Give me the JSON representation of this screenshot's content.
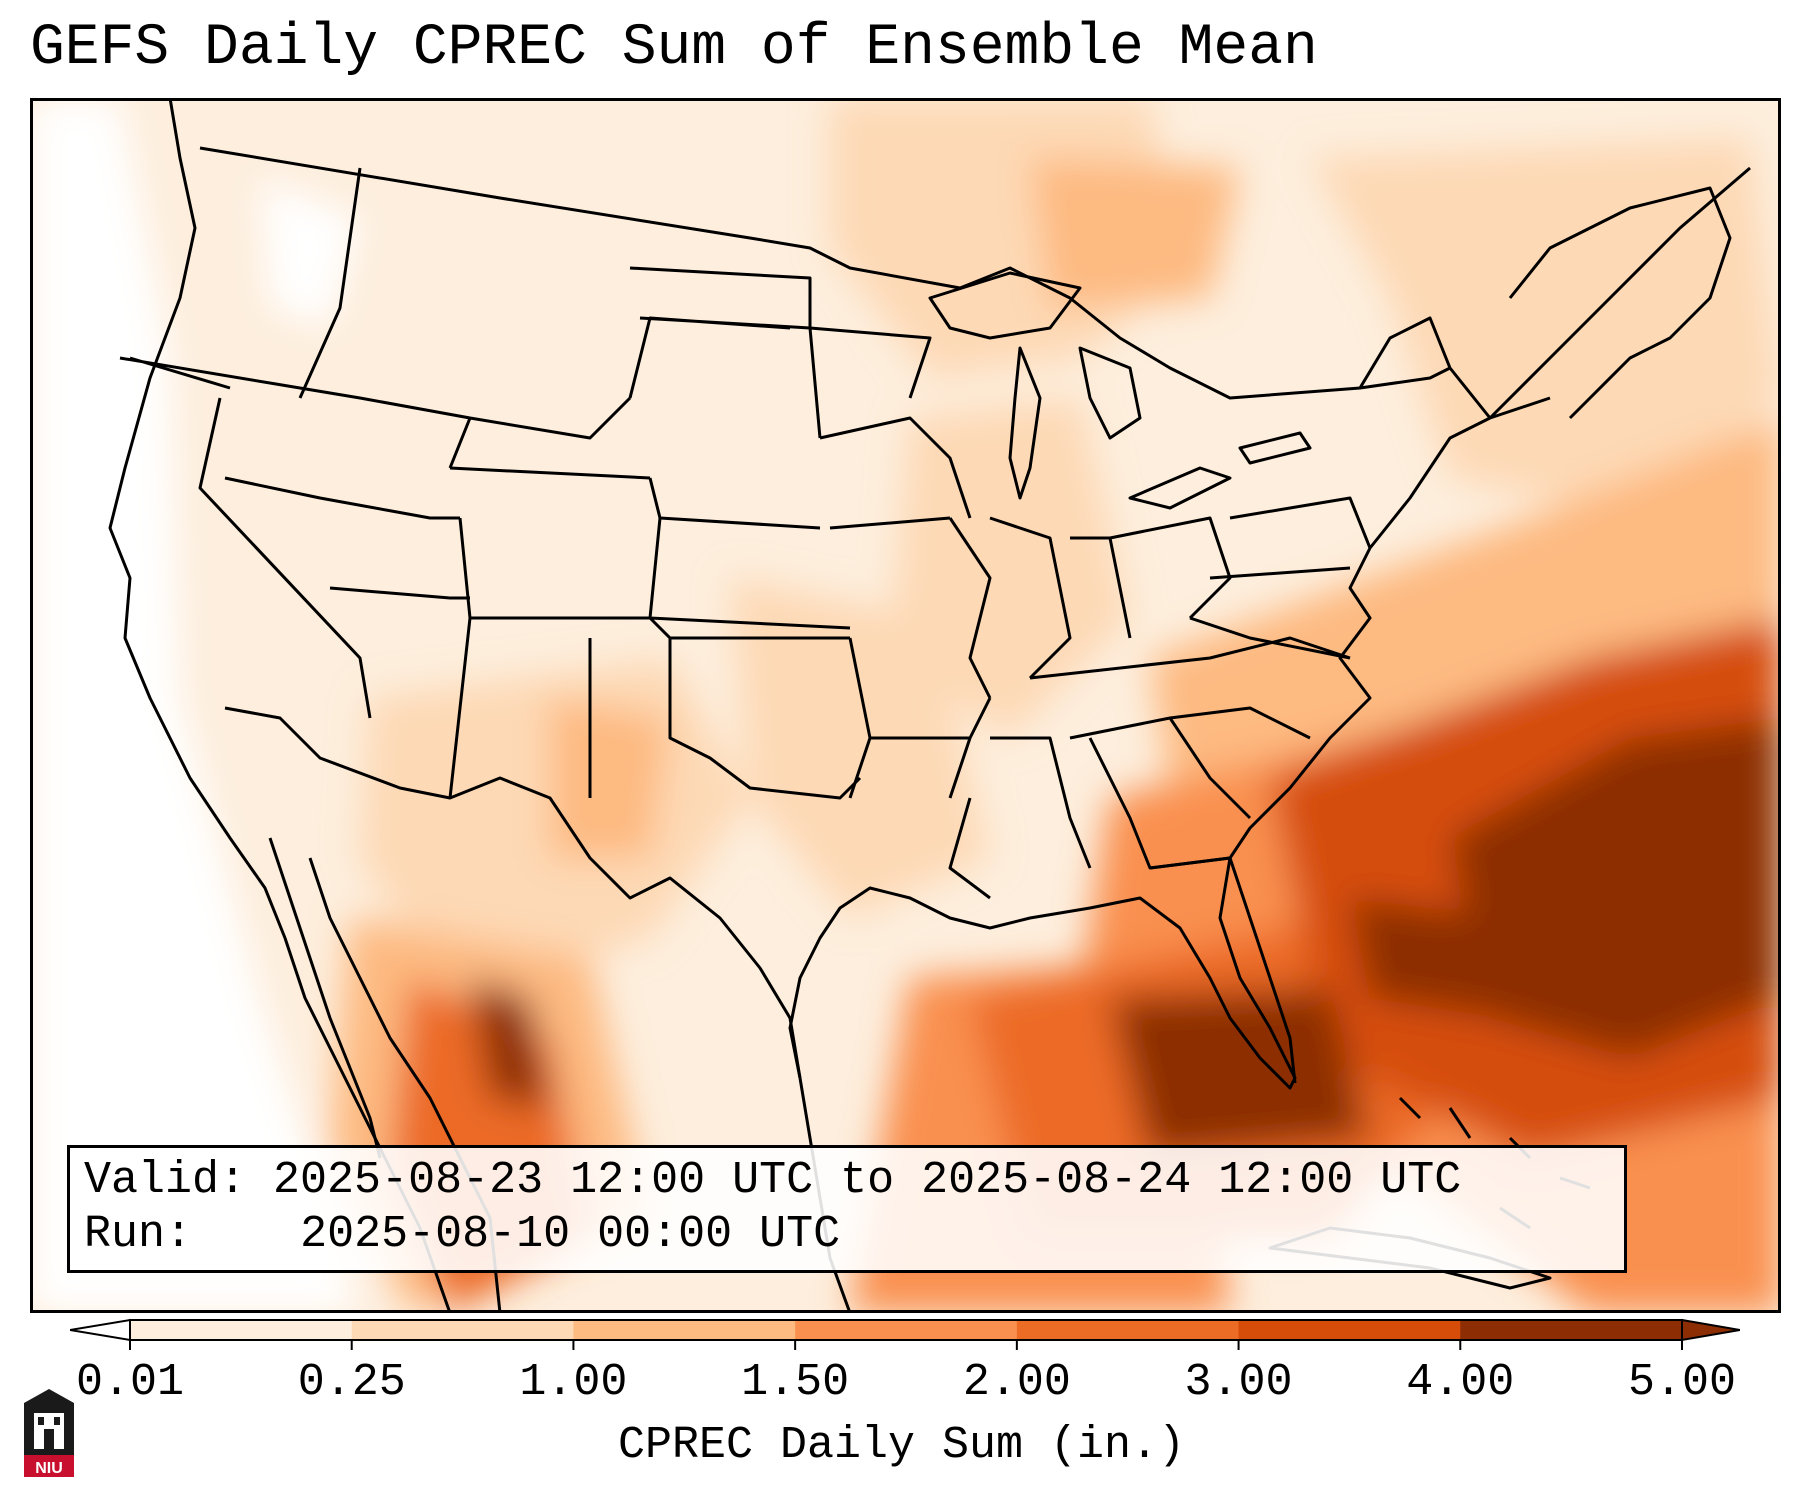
{
  "title": "GEFS Daily CPREC Sum of Ensemble Mean",
  "info": {
    "valid_label": "Valid:",
    "valid_value": "2025-08-23 12:00 UTC to 2025-08-24 12:00 UTC",
    "run_label": "Run:",
    "run_value": "2025-08-10 00:00 UTC"
  },
  "colorbar": {
    "ticks": [
      "0.01",
      "0.25",
      "1.00",
      "1.50",
      "2.00",
      "3.00",
      "4.00",
      "5.00"
    ],
    "colors": [
      "#fdeedd",
      "#fdd9b5",
      "#fdba81",
      "#f9904f",
      "#ec6b25",
      "#d54d09",
      "#8c2d04"
    ],
    "under_color": "#ffffff",
    "over_color": "#8c2d04",
    "title": "CPREC Daily Sum (in.)"
  },
  "logo": {
    "text": "NIU",
    "color": "#c8102e"
  },
  "map": {
    "region": "Contiguous United States and surroundings",
    "variable": "CPREC daily sum of GEFS ensemble mean",
    "heavy_areas": [
      "Southeastern US",
      "Gulf of Mexico",
      "Western Atlantic off Carolinas",
      "Sierra Madre Occidental"
    ]
  }
}
